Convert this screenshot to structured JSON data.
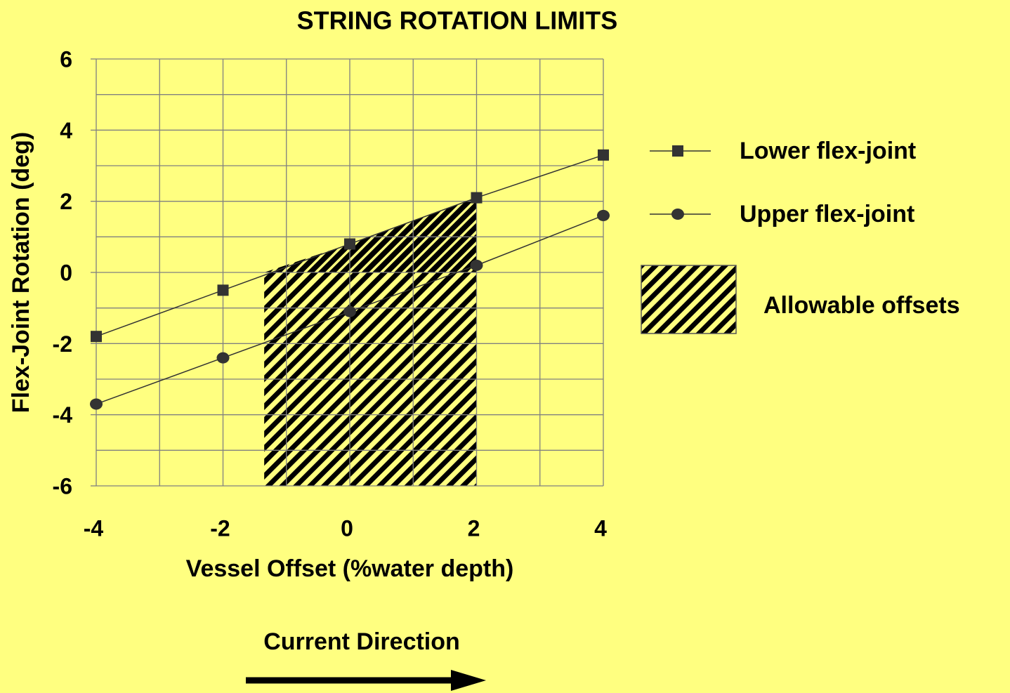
{
  "chart_data": {
    "type": "line",
    "title": "STRING ROTATION LIMITS",
    "x_label": "Vessel Offset (%water depth)",
    "y_label": "Flex-Joint Rotation (deg)",
    "x": [
      -4,
      -2,
      0,
      2,
      4
    ],
    "series": [
      {
        "name": "Lower flex-joint",
        "color": "#333333",
        "marker": "square",
        "values": [
          -1.8,
          -0.5,
          0.8,
          2.1,
          3.3
        ]
      },
      {
        "name": "Upper flex-joint",
        "color": "#333333",
        "marker": "circle",
        "values": [
          -3.7,
          -2.4,
          -1.1,
          0.2,
          1.6
        ]
      }
    ],
    "region": {
      "name": "Allowable offsets",
      "x": [
        -1.35,
        2
      ]
    },
    "xlim": [
      -4,
      4
    ],
    "ylim": [
      -6,
      6
    ],
    "xticks": [
      -4,
      -2,
      0,
      2,
      4
    ],
    "yticks": [
      -6,
      -4,
      -2,
      0,
      2,
      4,
      6
    ],
    "xgrid": [
      -4,
      -3,
      -2,
      -1,
      0,
      1,
      2,
      3,
      4
    ],
    "ygrid": [
      -6,
      -5,
      -4,
      -3,
      -2,
      -1,
      0,
      1,
      2,
      3,
      4,
      5,
      6
    ],
    "grid": true,
    "legend": "right",
    "annotation": "Current Direction"
  }
}
